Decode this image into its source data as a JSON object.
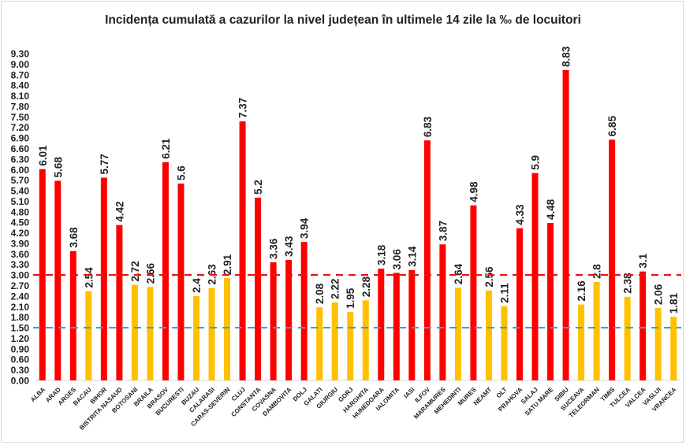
{
  "chart_data": {
    "type": "bar",
    "title": "Incidența cumulată a cazurilor la nivel județean în ultimele 14 zile la ‰ de locuitori",
    "xlabel": "",
    "ylabel": "",
    "ylim": [
      0,
      9.3
    ],
    "ytick_step": 0.3,
    "grid": false,
    "legend": "none",
    "categories": [
      "ALBA",
      "ARAD",
      "ARGES",
      "BACAU",
      "BIHOR",
      "BISTRITA NASAUD",
      "BOTOSANI",
      "BRAILA",
      "BRASOV",
      "BUCURESTI",
      "BUZAU",
      "CALARASI",
      "CARAS-SEVERIN",
      "CLUJ",
      "CONSTANTA",
      "COVASNA",
      "DAMBOVITA",
      "DOLJ",
      "GALATI",
      "GIURGIU",
      "GORJ",
      "HARGHITA",
      "HUNEDOARA",
      "IALOMITA",
      "IASI",
      "ILFOV",
      "MARAMURES",
      "MEHEDINTI",
      "MURES",
      "NEAMT",
      "OLT",
      "PRAHOVA",
      "SALAJ",
      "SATU MARE",
      "SIBIU",
      "SUCEAVA",
      "TELEORMAN",
      "TIMIS",
      "TULCEA",
      "VALCEA",
      "VASLUI",
      "VRANCEA"
    ],
    "values": [
      6.01,
      5.68,
      3.68,
      2.54,
      5.77,
      4.42,
      2.72,
      2.66,
      6.21,
      5.6,
      2.4,
      2.63,
      2.91,
      7.37,
      5.2,
      3.36,
      3.43,
      3.94,
      2.08,
      2.22,
      1.95,
      2.28,
      3.18,
      3.06,
      3.14,
      6.83,
      3.87,
      2.64,
      4.98,
      2.56,
      2.11,
      4.33,
      5.9,
      4.48,
      8.83,
      2.16,
      2.8,
      6.85,
      2.38,
      3.1,
      2.06,
      1.81
    ],
    "value_labels": [
      "6.01",
      "5.68",
      "3.68",
      "2.54",
      "5.77",
      "4.42",
      "2.72",
      "2.66",
      "6.21",
      "5.6",
      "2.4",
      "2.63",
      "2.91",
      "7.37",
      "5.2",
      "3.36",
      "3.43",
      "3.94",
      "2.08",
      "2.22",
      "1.95",
      "2.28",
      "3.18",
      "3.06",
      "3.14",
      "6.83",
      "3.87",
      "2.64",
      "4.98",
      "2.56",
      "2.11",
      "4.33",
      "5.9",
      "4.48",
      "8.83",
      "2.16",
      "2.8",
      "6.85",
      "2.38",
      "3.1",
      "2.06",
      "1.81"
    ],
    "reference_lines": [
      {
        "value": 3.0,
        "color": "#e8141b",
        "style": "dashed"
      },
      {
        "value": 1.5,
        "color": "#29a9d6",
        "style": "dashed"
      }
    ],
    "color_rule_threshold": 3.0,
    "colors": {
      "above": "#ff0000",
      "below": "#ffc000",
      "text": "#222222"
    }
  }
}
